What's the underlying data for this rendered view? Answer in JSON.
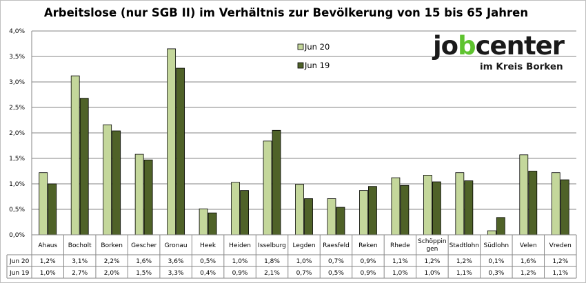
{
  "chart_data": {
    "type": "bar",
    "title": "Arbeitslose (nur SGB II) im Verhältnis zur Bevölkerung von 15 bis 65 Jahren",
    "categories": [
      "Ahaus",
      "Bocholt",
      "Borken",
      "Gescher",
      "Gronau",
      "Heek",
      "Heiden",
      "Isselburg",
      "Legden",
      "Raesfeld",
      "Reken",
      "Rhede",
      "Schöppingen",
      "Stadtlohn",
      "Südlohn",
      "Velen",
      "Vreden"
    ],
    "category_display": [
      "Ahaus",
      "Bocholt",
      "Borken",
      "Gescher",
      "Gronau",
      "Heek",
      "Heiden",
      "Isselburg",
      "Legden",
      "Raesfeld",
      "Reken",
      "Rhede",
      "Schöppin|gen",
      "Stadtlohn",
      "Südlohn",
      "Velen",
      "Vreden"
    ],
    "series": [
      {
        "name": "Jun 20",
        "color": "#c4d79b",
        "values": [
          1.22,
          3.12,
          2.16,
          1.58,
          3.65,
          0.51,
          1.03,
          1.84,
          0.99,
          0.71,
          0.87,
          1.12,
          1.17,
          1.22,
          0.08,
          1.57,
          1.22
        ],
        "labels": [
          "1,2%",
          "3,1%",
          "2,2%",
          "1,6%",
          "3,6%",
          "0,5%",
          "1,0%",
          "1,8%",
          "1,0%",
          "0,7%",
          "0,9%",
          "1,1%",
          "1,2%",
          "1,2%",
          "0,1%",
          "1,6%",
          "1,2%"
        ]
      },
      {
        "name": "Jun 19",
        "color": "#4f6228",
        "values": [
          1.0,
          2.68,
          2.04,
          1.47,
          3.27,
          0.43,
          0.87,
          2.05,
          0.71,
          0.54,
          0.95,
          0.97,
          1.04,
          1.06,
          0.34,
          1.25,
          1.08
        ],
        "labels": [
          "1,0%",
          "2,7%",
          "2,0%",
          "1,5%",
          "3,3%",
          "0,4%",
          "0,9%",
          "2,1%",
          "0,7%",
          "0,5%",
          "0,9%",
          "1,0%",
          "1,0%",
          "1,1%",
          "0,3%",
          "1,2%",
          "1,1%"
        ]
      }
    ],
    "ylim": [
      0,
      4.0
    ],
    "yticks": [
      "0,0%",
      "0,5%",
      "1,0%",
      "1,5%",
      "2,0%",
      "2,5%",
      "3,0%",
      "3,5%",
      "4,0%"
    ],
    "grid": true,
    "legend_position": "top-right",
    "data_table": true
  },
  "logo": {
    "part1": "jo",
    "part2": "b",
    "part3": "center",
    "subtitle": "im Kreis Borken",
    "brand_color": "#5ec32f"
  }
}
